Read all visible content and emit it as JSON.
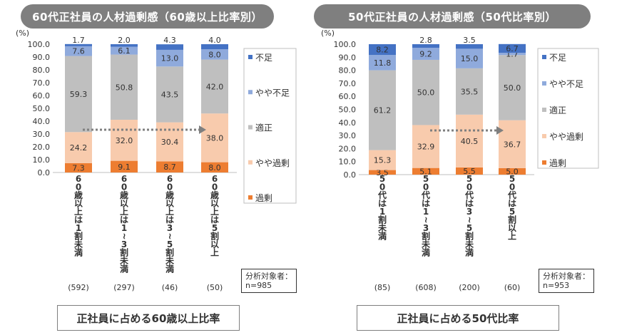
{
  "chart_data": [
    {
      "type": "bar",
      "stacked": true,
      "title": "60代正社員の人材過剰感（60歳以上比率別）",
      "xlabel": "正社員に占める60歳以上比率",
      "ylabel": "(%)",
      "ylim": [
        0,
        100
      ],
      "yticks": [
        "0.0",
        "10.0",
        "20.0",
        "30.0",
        "40.0",
        "50.0",
        "60.0",
        "70.0",
        "80.0",
        "90.0",
        "100.0"
      ],
      "categories": [
        "60歳以上は1割未満",
        "60歳以上は1~3割未満",
        "60歳以上は3~5割未満",
        "60歳以上は5割以上"
      ],
      "counts": [
        "(592)",
        "(297)",
        "(46)",
        "(50)"
      ],
      "series": [
        {
          "name": "過剰",
          "color": "#ed7d31",
          "values": [
            7.3,
            9.1,
            8.7,
            8.0
          ],
          "labels": [
            "7.3",
            "9.1",
            "8.7",
            "8.0"
          ]
        },
        {
          "name": "やや過剰",
          "color": "#f8cbad",
          "values": [
            24.2,
            32.0,
            30.4,
            38.0
          ],
          "labels": [
            "24.2",
            "32.0",
            "30.4",
            "38.0"
          ]
        },
        {
          "name": "適正",
          "color": "#bfbfbf",
          "values": [
            59.3,
            50.8,
            43.5,
            42.0
          ],
          "labels": [
            "59.3",
            "50.8",
            "43.5",
            "42.0"
          ]
        },
        {
          "name": "やや不足",
          "color": "#8faadc",
          "values": [
            7.6,
            6.1,
            13.0,
            8.0
          ],
          "labels": [
            "7.6",
            "6.1",
            "13.0",
            "8.0"
          ]
        },
        {
          "name": "不足",
          "color": "#4472c4",
          "values": [
            1.7,
            2.0,
            4.3,
            4.0
          ],
          "labels": [
            "1.7",
            "2.0",
            "4.3",
            "4.0"
          ]
        }
      ],
      "n_note": "分析対象者：\nn=985"
    },
    {
      "type": "bar",
      "stacked": true,
      "title": "50代正社員の人材過剰感（50代比率別）",
      "xlabel": "正社員に占める50代比率",
      "ylabel": "(%)",
      "ylim": [
        0,
        100
      ],
      "yticks": [
        "0.0",
        "10.0",
        "20.0",
        "30.0",
        "40.0",
        "50.0",
        "60.0",
        "70.0",
        "80.0",
        "90.0",
        "100.0"
      ],
      "categories": [
        "50代は1割未満",
        "50代は1~3割未満",
        "50代は3~5割未満",
        "50代は5割以上"
      ],
      "counts": [
        "(85)",
        "(608)",
        "(200)",
        "(60)"
      ],
      "series": [
        {
          "name": "過剰",
          "color": "#ed7d31",
          "values": [
            3.5,
            5.1,
            5.5,
            5.0
          ],
          "labels": [
            "3.5",
            "5.1",
            "5.5",
            "5.0"
          ]
        },
        {
          "name": "やや過剰",
          "color": "#f8cbad",
          "values": [
            15.3,
            32.9,
            40.5,
            36.7
          ],
          "labels": [
            "15.3",
            "32.9",
            "40.5",
            "36.7"
          ]
        },
        {
          "name": "適正",
          "color": "#bfbfbf",
          "values": [
            61.2,
            50.0,
            35.5,
            50.0
          ],
          "labels": [
            "61.2",
            "50.0",
            "35.5",
            "50.0"
          ]
        },
        {
          "name": "やや不足",
          "color": "#8faadc",
          "values": [
            11.8,
            9.2,
            15.0,
            1.7
          ],
          "labels": [
            "11.8",
            "9.2",
            "15.0",
            "1.7"
          ]
        },
        {
          "name": "不足",
          "color": "#4472c4",
          "values": [
            8.2,
            2.8,
            3.5,
            6.7
          ],
          "labels": [
            "8.2",
            "2.8",
            "3.5",
            "6.7"
          ]
        }
      ],
      "n_note": "分析対象者：\nn=953"
    }
  ]
}
